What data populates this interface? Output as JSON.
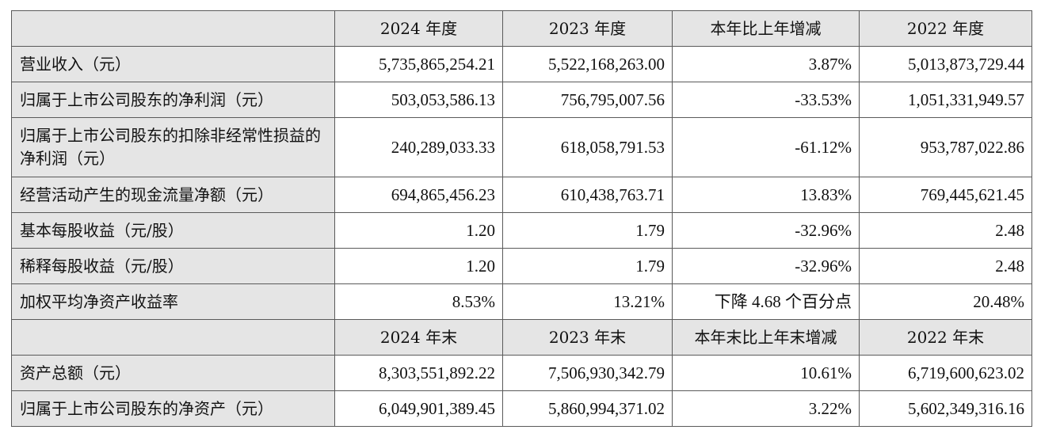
{
  "table": {
    "header1": [
      "",
      "2024 年度",
      "2023 年度",
      "本年比上年增减",
      "2022 年度"
    ],
    "rows1": [
      {
        "label": "营业收入（元）",
        "values": [
          "5,735,865,254.21",
          "5,522,168,263.00",
          "3.87%",
          "5,013,873,729.44"
        ]
      },
      {
        "label": "归属于上市公司股东的净利润（元）",
        "values": [
          "503,053,586.13",
          "756,795,007.56",
          "-33.53%",
          "1,051,331,949.57"
        ]
      },
      {
        "label": "归属于上市公司股东的扣除非经常性损益的净利润（元）",
        "values": [
          "240,289,033.33",
          "618,058,791.53",
          "-61.12%",
          "953,787,022.86"
        ]
      },
      {
        "label": "经营活动产生的现金流量净额（元）",
        "values": [
          "694,865,456.23",
          "610,438,763.71",
          "13.83%",
          "769,445,621.45"
        ]
      },
      {
        "label": "基本每股收益（元/股）",
        "values": [
          "1.20",
          "1.79",
          "-32.96%",
          "2.48"
        ]
      },
      {
        "label": "稀释每股收益（元/股）",
        "values": [
          "1.20",
          "1.79",
          "-32.96%",
          "2.48"
        ]
      },
      {
        "label": "加权平均净资产收益率",
        "values": [
          "8.53%",
          "13.21%",
          "下降 4.68 个百分点",
          "20.48%"
        ]
      }
    ],
    "header2": [
      "",
      "2024 年末",
      "2023 年末",
      "本年末比上年末增减",
      "2022 年末"
    ],
    "rows2": [
      {
        "label": "资产总额（元）",
        "values": [
          "8,303,551,892.22",
          "7,506,930,342.79",
          "10.61%",
          "6,719,600,623.02"
        ]
      },
      {
        "label": "归属于上市公司股东的净资产（元）",
        "values": [
          "6,049,901,389.45",
          "5,860,994,371.02",
          "3.22%",
          "5,602,349,316.16"
        ]
      }
    ]
  }
}
